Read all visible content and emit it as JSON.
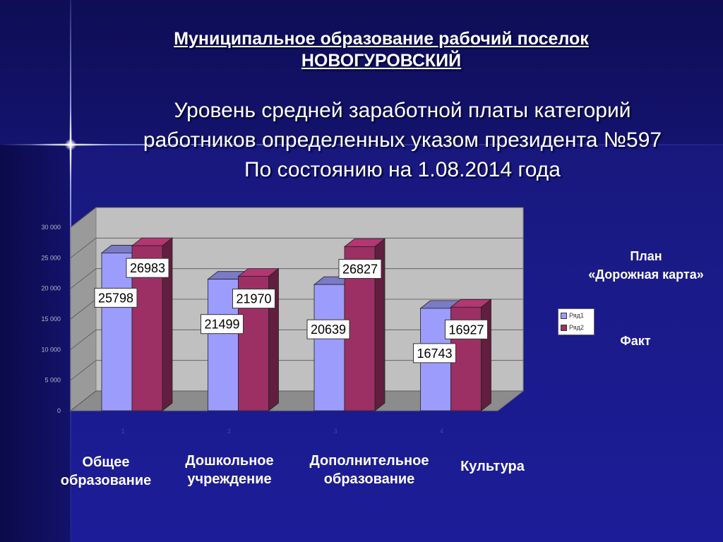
{
  "header": {
    "line1": "Муниципальное образование рабочий поселок",
    "line2": "НОВОГУРОВСКИЙ"
  },
  "title": {
    "line1": "Уровень средней заработной платы категорий",
    "line2": "работников определенных указом президента №597",
    "line3": "По состоянию на 1.08.2014 года"
  },
  "side_labels": {
    "plan_line1": "План",
    "plan_line2": "«Дорожная карта»",
    "fact": "Факт"
  },
  "category_labels": [
    {
      "line1": "Общее",
      "line2": "образование"
    },
    {
      "line1": "Дошкольное",
      "line2": "учреждение"
    },
    {
      "line1": "Дополнительное",
      "line2": "образование"
    },
    {
      "line1": "Культура",
      "line2": ""
    }
  ],
  "colors": {
    "series1_front": "#9c9cfc",
    "series2_front": "#9c3064",
    "chart_wall": "#c0c0c0",
    "background": "#1a1a86"
  },
  "chart_data": {
    "type": "bar",
    "categories": [
      "1",
      "2",
      "3",
      "4"
    ],
    "series": [
      {
        "name": "Ряд1",
        "values": [
          25798,
          21499,
          20639,
          16743
        ]
      },
      {
        "name": "Ряд2",
        "values": [
          26983,
          21970,
          26827,
          16927
        ]
      }
    ],
    "y_ticks": [
      "0",
      "5 000",
      "10 000",
      "15 000",
      "20 000",
      "25 000",
      "30 000"
    ],
    "ylim": [
      0,
      30000
    ],
    "legend": "right",
    "grid": true
  }
}
